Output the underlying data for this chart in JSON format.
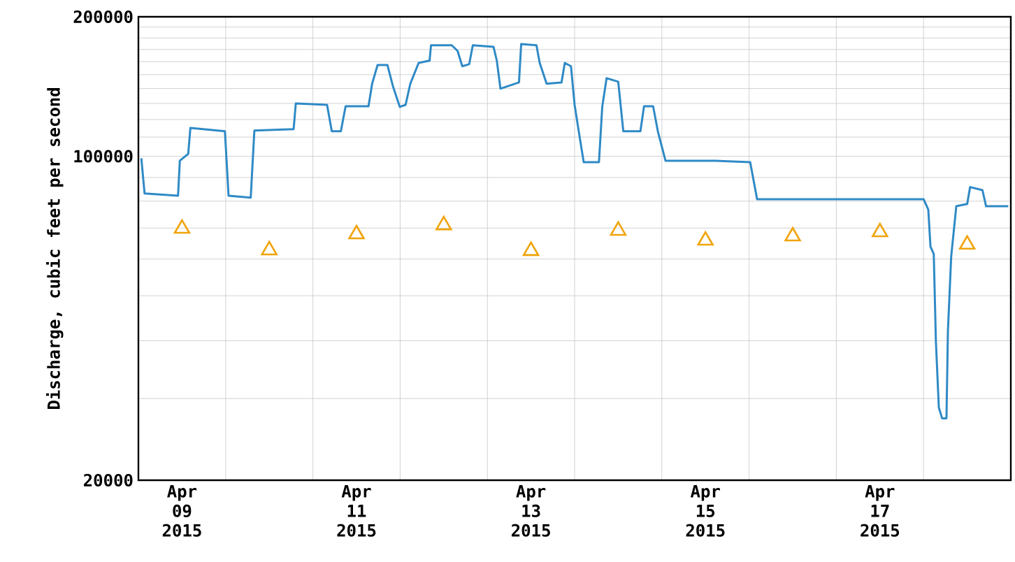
{
  "chart_data": {
    "type": "line",
    "ylabel": "Discharge, cubic feet per second",
    "log": "y",
    "grid": true,
    "xlim": [
      "2015-04-09",
      "2015-04-19"
    ],
    "ylim": [
      20000,
      200000
    ],
    "xticks": [
      {
        "value": "2015-04-09T12:00",
        "label": "Apr 09 2015"
      },
      {
        "value": "2015-04-10",
        "label": null
      },
      {
        "value": "2015-04-11",
        "label": null
      },
      {
        "value": "2015-04-11T12:00",
        "label": "Apr 11 2015"
      },
      {
        "value": "2015-04-12",
        "label": null
      },
      {
        "value": "2015-04-13",
        "label": null
      },
      {
        "value": "2015-04-13T12:00",
        "label": "Apr 13 2015"
      },
      {
        "value": "2015-04-14",
        "label": null
      },
      {
        "value": "2015-04-15",
        "label": null
      },
      {
        "value": "2015-04-15T12:00",
        "label": "Apr 15 2015"
      },
      {
        "value": "2015-04-16",
        "label": null
      },
      {
        "value": "2015-04-17",
        "label": null
      },
      {
        "value": "2015-04-17T12:00",
        "label": "Apr 17 2015"
      },
      {
        "value": "2015-04-18",
        "label": null
      }
    ],
    "yticks": [
      20000,
      {
        "value": 30000,
        "label": null
      },
      {
        "value": 40000,
        "label": null
      },
      {
        "value": 50000,
        "label": null
      },
      {
        "value": 60000,
        "label": null
      },
      {
        "value": 70000,
        "label": null
      },
      {
        "value": 80000,
        "label": null
      },
      {
        "value": 90000,
        "label": null
      },
      100000,
      {
        "value": 110000,
        "label": null
      },
      {
        "value": 120000,
        "label": null
      },
      {
        "value": 130000,
        "label": null
      },
      {
        "value": 140000,
        "label": null
      },
      {
        "value": 150000,
        "label": null
      },
      {
        "value": 160000,
        "label": null
      },
      {
        "value": 170000,
        "label": null
      },
      {
        "value": 180000,
        "label": null
      },
      {
        "value": 190000,
        "label": null
      },
      200000
    ],
    "series": [
      {
        "color": "#2f8ac6",
        "x": [
          "2015-04-09T00:48",
          "2015-04-09T01:42",
          "2015-04-09T10:54",
          "2015-04-09T11:24",
          "2015-04-09T13:42",
          "2015-04-09T14:18",
          "2015-04-09T23:48",
          "2015-04-10T00:48",
          "2015-04-10T06:54",
          "2015-04-10T07:54",
          "2015-04-10T18:42",
          "2015-04-10T19:18",
          "2015-04-11T03:54",
          "2015-04-11T05:12",
          "2015-04-11T07:42",
          "2015-04-11T09:00",
          "2015-04-11T15:18",
          "2015-04-11T16:18",
          "2015-04-11T17:48",
          "2015-04-11T20:30",
          "2015-04-11T22:00",
          "2015-04-11T23:54",
          "2015-04-12T01:30",
          "2015-04-12T02:48",
          "2015-04-12T05:06",
          "2015-04-12T08:06",
          "2015-04-12T08:30",
          "2015-04-12T14:12",
          "2015-04-12T15:48",
          "2015-04-12T17:06",
          "2015-04-12T19:00",
          "2015-04-12T20:00",
          "2015-04-13T01:42",
          "2015-04-13T02:36",
          "2015-04-13T03:36",
          "2015-04-13T08:42",
          "2015-04-13T09:18",
          "2015-04-13T13:30",
          "2015-04-13T14:24",
          "2015-04-13T16:18",
          "2015-04-13T20:24",
          "2015-04-13T21:18",
          "2015-04-13T23:00",
          "2015-04-14T00:00",
          "2015-04-14T01:12",
          "2015-04-14T02:30",
          "2015-04-14T06:42",
          "2015-04-14T07:36",
          "2015-04-14T08:48",
          "2015-04-14T12:00",
          "2015-04-14T13:24",
          "2015-04-14T18:06",
          "2015-04-14T19:06",
          "2015-04-14T21:36",
          "2015-04-14T22:54",
          "2015-04-15T01:00",
          "2015-04-15T14:42",
          "2015-04-16T00:18",
          "2015-04-16T02:12",
          "2015-04-18T00:00",
          "2015-04-18T01:18",
          "2015-04-18T01:54",
          "2015-04-18T02:48",
          "2015-04-18T03:24",
          "2015-04-18T04:12",
          "2015-04-18T05:06",
          "2015-04-18T06:18",
          "2015-04-18T06:42",
          "2015-04-18T07:36",
          "2015-04-18T09:00",
          "2015-04-18T12:00",
          "2015-04-18T12:48",
          "2015-04-18T16:12",
          "2015-04-18T17:12",
          "2015-04-18T23:18"
        ],
        "values": [
          99000,
          83100,
          82200,
          97800,
          101200,
          115100,
          113200,
          82200,
          81400,
          113600,
          114400,
          130000,
          129100,
          113200,
          113200,
          128200,
          128200,
          143400,
          157400,
          157400,
          141800,
          127800,
          129100,
          143400,
          159000,
          160800,
          173600,
          173600,
          168800,
          156400,
          158000,
          173600,
          172200,
          160800,
          139900,
          144300,
          174600,
          173600,
          159000,
          143400,
          144300,
          159000,
          156400,
          129100,
          112400,
          97100,
          97100,
          127800,
          147400,
          144800,
          113200,
          113200,
          128200,
          128200,
          113200,
          97800,
          97800,
          97100,
          80800,
          80800,
          76700,
          63800,
          61600,
          39700,
          28700,
          27200,
          27200,
          42000,
          60800,
          78000,
          78900,
          85800,
          84500,
          78000,
          78000
        ]
      },
      {
        "type": "scatter",
        "marker": "triangle",
        "color": "#f0a30a",
        "x": [
          "2015-04-09T12:00",
          "2015-04-10T12:00",
          "2015-04-11T12:00",
          "2015-04-12T12:00",
          "2015-04-13T12:00",
          "2015-04-14T12:00",
          "2015-04-15T12:00",
          "2015-04-16T12:00",
          "2015-04-17T12:00",
          "2015-04-18T12:00"
        ],
        "values": [
          69800,
          62700,
          67900,
          71000,
          62500,
          69100,
          65800,
          67200,
          68600,
          64500
        ]
      }
    ]
  }
}
